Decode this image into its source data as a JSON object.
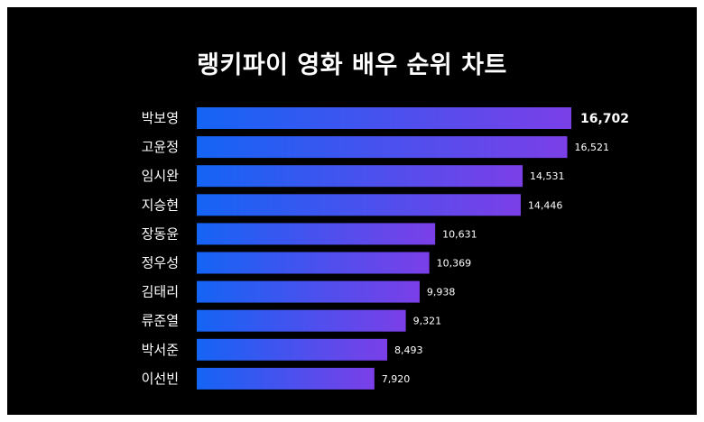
{
  "chart_data": {
    "type": "bar",
    "orientation": "horizontal",
    "title": "랭키파이 영화 배우 순위 차트",
    "categories": [
      "박보영",
      "고윤정",
      "임시완",
      "지승현",
      "장동윤",
      "정우성",
      "김태리",
      "류준열",
      "박서준",
      "이선빈"
    ],
    "values": [
      16702,
      16521,
      14531,
      14446,
      10631,
      10369,
      9938,
      9321,
      8493,
      7920
    ],
    "value_labels": [
      "16,702",
      "16,521",
      "14,531",
      "14,446",
      "10,631",
      "10,369",
      "9,938",
      "9,321",
      "8,493",
      "7,920"
    ],
    "xlim": [
      0,
      16702
    ],
    "grid": false,
    "gradient": [
      "#1464f4",
      "#7b3fe8"
    ],
    "background": "#000000"
  }
}
